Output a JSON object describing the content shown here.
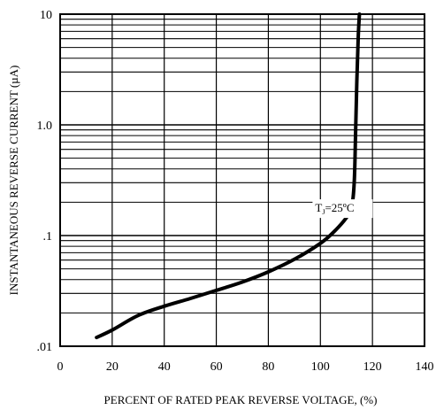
{
  "chart_data": {
    "type": "line",
    "title": "",
    "xlabel": "PERCENT OF RATED PEAK REVERSE VOLTAGE, (%)",
    "ylabel": "INSTANTANEOUS REVERSE CURRENT (µA)",
    "xlim": [
      0,
      140
    ],
    "ylim": [
      0.01,
      10
    ],
    "yscale": "log",
    "grid": true,
    "x_ticks": [
      0,
      20,
      40,
      60,
      80,
      100,
      120,
      140
    ],
    "x_tick_labels": [
      "0",
      "20",
      "40",
      "60",
      "80",
      "100",
      "120",
      "140"
    ],
    "y_ticks": [
      0.01,
      0.1,
      1.0,
      10
    ],
    "y_tick_labels": [
      ".01",
      ".1",
      "1.0",
      "10"
    ],
    "series": [
      {
        "x": [
          14,
          20,
          30,
          40,
          50,
          60,
          70,
          80,
          90,
          100,
          105,
          110,
          112,
          113,
          113.5,
          114,
          114.5,
          115
        ],
        "values": [
          0.012,
          0.014,
          0.019,
          0.023,
          0.027,
          0.032,
          0.038,
          0.047,
          0.061,
          0.085,
          0.107,
          0.145,
          0.18,
          0.3,
          0.8,
          2.5,
          6,
          10
        ]
      }
    ],
    "annotation": {
      "text_main": "T",
      "text_sub": "J",
      "text_tail": "=25ºC",
      "x": 98,
      "y": 0.18
    }
  }
}
